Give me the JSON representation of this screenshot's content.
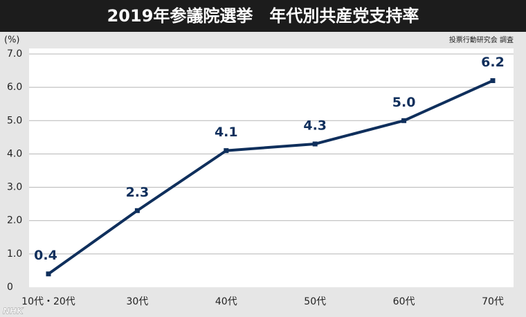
{
  "chart_data": {
    "type": "line",
    "title": "2019年参議院選挙　年代別共産党支持率",
    "y_unit": "(%)",
    "source": "投票行動研究会 調査",
    "watermark": "NHK",
    "categories": [
      "10代・20代",
      "30代",
      "40代",
      "50代",
      "60代",
      "70代"
    ],
    "series": [
      {
        "name": "共産党支持率",
        "color": "#0f2f5c",
        "values": [
          0.4,
          2.3,
          4.1,
          4.3,
          5.0,
          6.2
        ],
        "value_labels": [
          "0.4",
          "2.3",
          "4.1",
          "4.3",
          "5.0",
          "6.2"
        ]
      }
    ],
    "ylim": [
      0,
      7
    ],
    "yticks": [
      0,
      {
        "value": 1,
        "label": "1.0"
      },
      {
        "value": 2,
        "label": "2.0"
      },
      {
        "value": 3,
        "label": "3.0"
      },
      {
        "value": 4,
        "label": "4.0"
      },
      {
        "value": 5,
        "label": "5.0"
      },
      {
        "value": 6,
        "label": "6.0"
      },
      {
        "value": 7,
        "label": "7.0"
      }
    ],
    "grid": true
  }
}
